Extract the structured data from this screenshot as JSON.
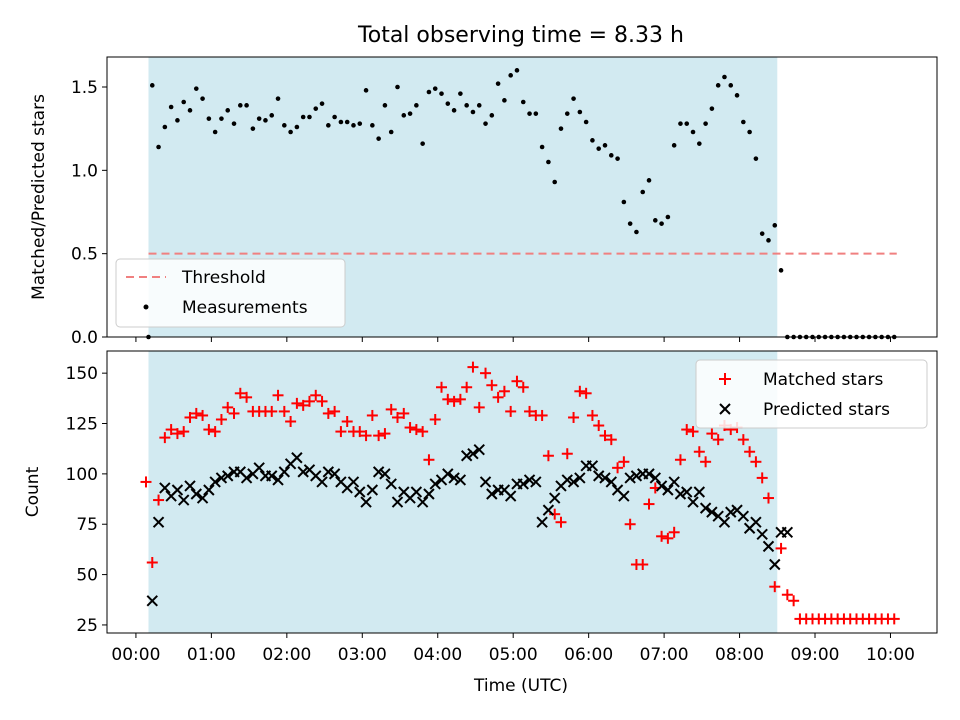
{
  "figure": {
    "title": "Total observing time = 8.33 h",
    "xlabel": "Time (UTC)"
  },
  "chart_data": [
    {
      "type": "scatter",
      "panel": "top",
      "ylabel": "Matched/Predicted stars",
      "xlim": [
        "23:37",
        "10:37"
      ],
      "ylim": [
        0,
        1.68
      ],
      "x_ticks": [
        "00:00",
        "01:00",
        "02:00",
        "03:00",
        "04:00",
        "05:00",
        "06:00",
        "07:00",
        "08:00",
        "09:00",
        "10:00"
      ],
      "y_ticks": [
        "0.0",
        "0.5",
        "1.0",
        "1.5"
      ],
      "observing_window": [
        "00:10",
        "08:30"
      ],
      "threshold": {
        "name": "Threshold",
        "value": 0.5,
        "x_range": [
          "00:10",
          "10:05"
        ],
        "color": "#f08080"
      },
      "legend": {
        "position": "lower-left",
        "entries": [
          "Threshold",
          "Measurements"
        ]
      },
      "series": [
        {
          "name": "Measurements",
          "color": "#000000",
          "x": [
            "00:10",
            "00:13",
            "00:18",
            "00:23",
            "00:28",
            "00:33",
            "00:38",
            "00:43",
            "00:48",
            "00:53",
            "00:58",
            "01:03",
            "01:08",
            "01:13",
            "01:18",
            "01:23",
            "01:28",
            "01:33",
            "01:38",
            "01:43",
            "01:48",
            "01:53",
            "01:58",
            "02:03",
            "02:08",
            "02:13",
            "02:18",
            "02:23",
            "02:28",
            "02:33",
            "02:38",
            "02:43",
            "02:48",
            "02:53",
            "02:58",
            "03:03",
            "03:08",
            "03:13",
            "03:18",
            "03:23",
            "03:28",
            "03:33",
            "03:38",
            "03:43",
            "03:48",
            "03:53",
            "03:58",
            "04:03",
            "04:08",
            "04:13",
            "04:18",
            "04:23",
            "04:28",
            "04:33",
            "04:38",
            "04:43",
            "04:48",
            "04:53",
            "04:58",
            "05:03",
            "05:08",
            "05:13",
            "05:18",
            "05:23",
            "05:28",
            "05:33",
            "05:38",
            "05:43",
            "05:48",
            "05:53",
            "05:58",
            "06:03",
            "06:08",
            "06:13",
            "06:18",
            "06:23",
            "06:28",
            "06:33",
            "06:38",
            "06:43",
            "06:48",
            "06:53",
            "06:58",
            "07:03",
            "07:08",
            "07:13",
            "07:18",
            "07:23",
            "07:28",
            "07:33",
            "07:38",
            "07:43",
            "07:48",
            "07:53",
            "07:58",
            "08:03",
            "08:08",
            "08:13",
            "08:18",
            "08:23",
            "08:28",
            "08:33",
            "08:38",
            "08:43",
            "08:48",
            "08:53",
            "08:58",
            "09:03",
            "09:08",
            "09:13",
            "09:18",
            "09:23",
            "09:28",
            "09:33",
            "09:38",
            "09:43",
            "09:48",
            "09:53",
            "09:58",
            "10:03"
          ],
          "y": [
            0.0,
            1.51,
            1.14,
            1.26,
            1.38,
            1.3,
            1.41,
            1.36,
            1.49,
            1.43,
            1.31,
            1.23,
            1.31,
            1.36,
            1.28,
            1.39,
            1.39,
            1.25,
            1.31,
            1.3,
            1.33,
            1.43,
            1.27,
            1.23,
            1.26,
            1.32,
            1.32,
            1.37,
            1.4,
            1.27,
            1.32,
            1.29,
            1.29,
            1.27,
            1.28,
            1.48,
            1.27,
            1.19,
            1.39,
            1.23,
            1.5,
            1.33,
            1.34,
            1.39,
            1.16,
            1.47,
            1.49,
            1.46,
            1.4,
            1.36,
            1.46,
            1.39,
            1.35,
            1.39,
            1.28,
            1.33,
            1.52,
            1.42,
            1.57,
            1.6,
            1.41,
            1.34,
            1.34,
            1.14,
            1.05,
            0.93,
            1.25,
            1.34,
            1.43,
            1.35,
            1.29,
            1.18,
            1.13,
            1.15,
            1.09,
            1.07,
            0.81,
            0.68,
            0.63,
            0.87,
            0.94,
            0.7,
            0.68,
            0.72,
            1.15,
            1.28,
            1.28,
            1.23,
            1.16,
            1.28,
            1.37,
            1.51,
            1.56,
            1.51,
            1.45,
            1.29,
            1.23,
            1.07,
            0.62,
            0.58,
            0.67,
            0.4,
            0.0,
            0.0,
            0.0,
            0.0,
            0.0,
            0.0,
            0.0,
            0.0,
            0.0,
            0.0,
            0.0,
            0.0,
            0.0,
            0.0,
            0.0,
            0.0,
            0.0,
            0.0
          ]
        }
      ]
    },
    {
      "type": "scatter",
      "panel": "bottom",
      "ylabel": "Count",
      "xlim": [
        "23:37",
        "10:37"
      ],
      "ylim": [
        21,
        161
      ],
      "x_ticks": [
        "00:00",
        "01:00",
        "02:00",
        "03:00",
        "04:00",
        "05:00",
        "06:00",
        "07:00",
        "08:00",
        "09:00",
        "10:00"
      ],
      "y_ticks": [
        "25",
        "50",
        "75",
        "100",
        "125",
        "150"
      ],
      "observing_window": [
        "00:10",
        "08:30"
      ],
      "legend": {
        "position": "upper-right",
        "entries": [
          "Matched stars",
          "Predicted stars"
        ]
      },
      "series": [
        {
          "name": "Matched stars",
          "marker": "+",
          "color": "#ff0000",
          "x": [
            "00:08",
            "00:13",
            "00:18",
            "00:23",
            "00:28",
            "00:33",
            "00:38",
            "00:43",
            "00:48",
            "00:53",
            "00:58",
            "01:03",
            "01:08",
            "01:13",
            "01:18",
            "01:23",
            "01:28",
            "01:33",
            "01:38",
            "01:43",
            "01:48",
            "01:53",
            "01:58",
            "02:03",
            "02:08",
            "02:13",
            "02:18",
            "02:23",
            "02:28",
            "02:33",
            "02:38",
            "02:43",
            "02:48",
            "02:53",
            "02:58",
            "03:03",
            "03:08",
            "03:13",
            "03:18",
            "03:23",
            "03:28",
            "03:33",
            "03:38",
            "03:43",
            "03:48",
            "03:53",
            "03:58",
            "04:03",
            "04:08",
            "04:13",
            "04:18",
            "04:23",
            "04:28",
            "04:33",
            "04:38",
            "04:43",
            "04:48",
            "04:53",
            "04:58",
            "05:03",
            "05:08",
            "05:13",
            "05:18",
            "05:23",
            "05:28",
            "05:33",
            "05:38",
            "05:43",
            "05:48",
            "05:53",
            "05:58",
            "06:03",
            "06:08",
            "06:13",
            "06:18",
            "06:23",
            "06:28",
            "06:33",
            "06:38",
            "06:43",
            "06:48",
            "06:53",
            "06:58",
            "07:03",
            "07:08",
            "07:13",
            "07:18",
            "07:23",
            "07:28",
            "07:33",
            "07:38",
            "07:43",
            "07:48",
            "07:53",
            "07:58",
            "08:03",
            "08:08",
            "08:13",
            "08:18",
            "08:23",
            "08:28",
            "08:33",
            "08:38",
            "08:43",
            "08:48",
            "08:53",
            "08:58",
            "09:03",
            "09:08",
            "09:13",
            "09:18",
            "09:23",
            "09:28",
            "09:33",
            "09:38",
            "09:43",
            "09:48",
            "09:53",
            "09:58",
            "10:03"
          ],
          "y": [
            96,
            56,
            87,
            118,
            122,
            120,
            121,
            128,
            130,
            129,
            122,
            121,
            127,
            133,
            130,
            140,
            138,
            131,
            131,
            131,
            131,
            139,
            131,
            126,
            135,
            134,
            136,
            139,
            136,
            130,
            131,
            121,
            126,
            121,
            121,
            119,
            129,
            119,
            120,
            132,
            128,
            130,
            123,
            122,
            121,
            107,
            127,
            143,
            137,
            136,
            137,
            143,
            153,
            133,
            150,
            144,
            138,
            141,
            131,
            146,
            143,
            131,
            129,
            129,
            109,
            80,
            76,
            110,
            128,
            141,
            140,
            129,
            124,
            119,
            117,
            103,
            106,
            75,
            55,
            55,
            85,
            93,
            69,
            68,
            71,
            107,
            122,
            121,
            111,
            106,
            120,
            117,
            124,
            122,
            123,
            117,
            111,
            106,
            98,
            88,
            44,
            63,
            40,
            37,
            28,
            28,
            28,
            28,
            28,
            28,
            28,
            28,
            28,
            28,
            28,
            28,
            28,
            28,
            28,
            28
          ]
        },
        {
          "name": "Predicted stars",
          "marker": "x",
          "color": "#000000",
          "x": [
            "00:13",
            "00:18",
            "00:23",
            "00:28",
            "00:33",
            "00:38",
            "00:43",
            "00:48",
            "00:53",
            "00:58",
            "01:03",
            "01:08",
            "01:13",
            "01:18",
            "01:23",
            "01:28",
            "01:33",
            "01:38",
            "01:43",
            "01:48",
            "01:53",
            "01:58",
            "02:03",
            "02:08",
            "02:13",
            "02:18",
            "02:23",
            "02:28",
            "02:33",
            "02:38",
            "02:43",
            "02:48",
            "02:53",
            "02:58",
            "03:03",
            "03:08",
            "03:13",
            "03:18",
            "03:23",
            "03:28",
            "03:33",
            "03:38",
            "03:43",
            "03:48",
            "03:53",
            "03:58",
            "04:03",
            "04:08",
            "04:13",
            "04:18",
            "04:23",
            "04:28",
            "04:33",
            "04:38",
            "04:43",
            "04:48",
            "04:53",
            "04:58",
            "05:03",
            "05:08",
            "05:13",
            "05:18",
            "05:23",
            "05:28",
            "05:33",
            "05:38",
            "05:43",
            "05:48",
            "05:53",
            "05:58",
            "06:03",
            "06:08",
            "06:13",
            "06:18",
            "06:23",
            "06:28",
            "06:33",
            "06:38",
            "06:43",
            "06:48",
            "06:53",
            "06:58",
            "07:03",
            "07:08",
            "07:13",
            "07:18",
            "07:23",
            "07:28",
            "07:33",
            "07:38",
            "07:43",
            "07:48",
            "07:53",
            "07:58",
            "08:03",
            "08:08",
            "08:13",
            "08:18",
            "08:23",
            "08:28",
            "08:33",
            "08:38"
          ],
          "y": [
            37,
            76,
            93,
            89,
            92,
            87,
            94,
            90,
            88,
            92,
            96,
            98,
            99,
            101,
            101,
            98,
            100,
            103,
            99,
            99,
            97,
            101,
            105,
            108,
            101,
            102,
            99,
            96,
            101,
            100,
            96,
            93,
            96,
            91,
            86,
            92,
            101,
            100,
            95,
            86,
            91,
            88,
            91,
            86,
            90,
            95,
            97,
            100,
            98,
            97,
            109,
            110,
            112,
            96,
            90,
            92,
            92,
            89,
            95,
            95,
            97,
            96,
            76,
            82,
            88,
            94,
            97,
            96,
            98,
            104,
            104,
            99,
            98,
            96,
            92,
            89,
            98,
            99,
            100,
            100,
            98,
            94,
            92,
            96,
            90,
            91,
            86,
            91,
            83,
            81,
            79,
            76,
            81,
            82,
            79,
            73,
            76,
            70,
            64,
            55,
            71,
            71
          ]
        }
      ]
    }
  ]
}
